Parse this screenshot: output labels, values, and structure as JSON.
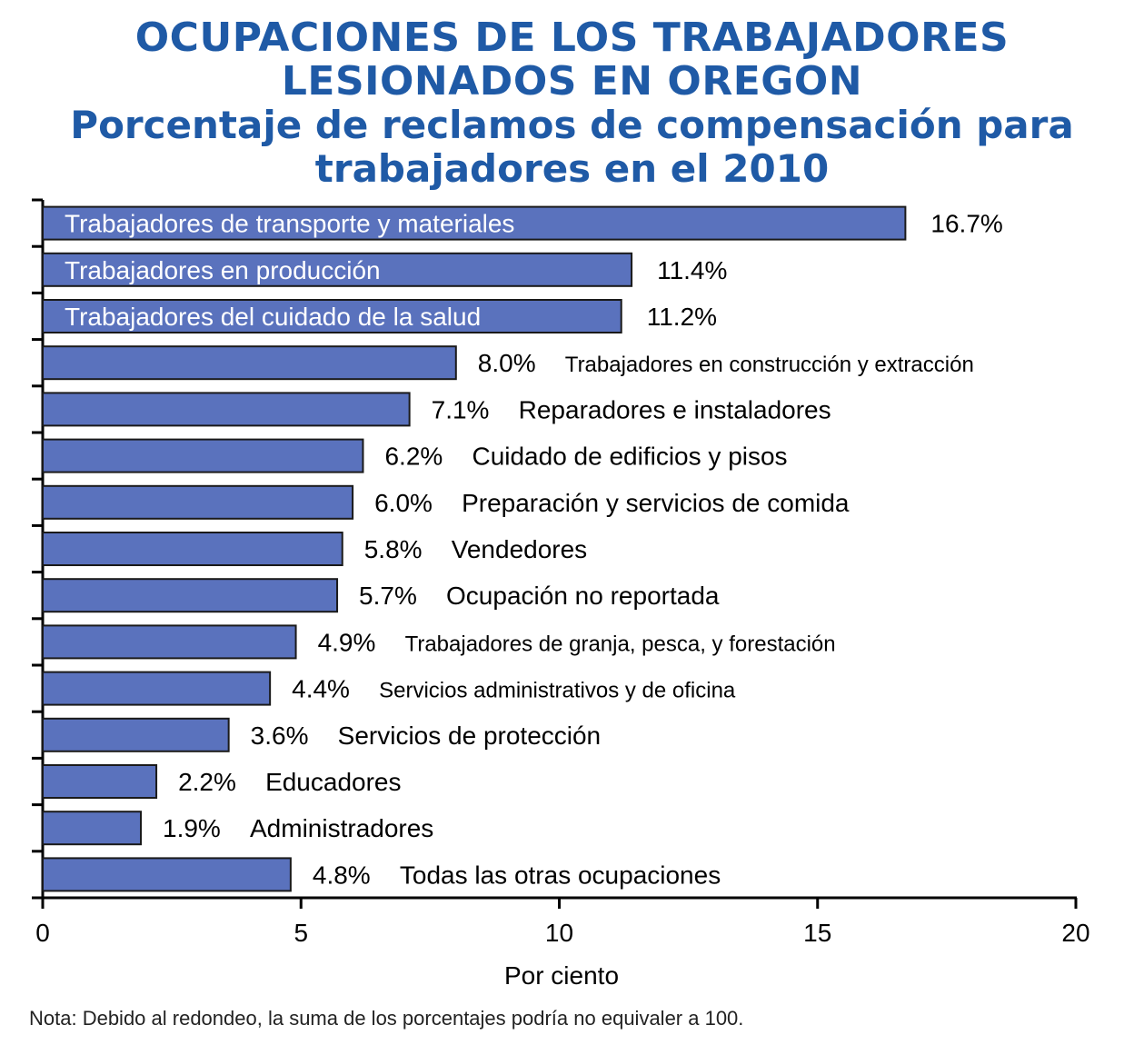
{
  "title_lines": [
    "OCUPACIONES DE LOS TRABAJADORES",
    "LESIONADOS EN OREGON"
  ],
  "subtitle_lines": [
    "Porcentaje de reclamos de compensación para",
    "trabajadores en el 2010"
  ],
  "note": "Nota: Debido al redondeo,  la suma de los porcentajes podría no equivaler a 100.",
  "colors": {
    "title": "#1f5aa6",
    "bar": "#5a72bd",
    "bar_stroke": "#1a1a1a",
    "inside_label": "#ffffff"
  },
  "chart_data": {
    "type": "bar",
    "orientation": "horizontal",
    "xlabel": "Por ciento",
    "xlim": [
      0,
      20
    ],
    "xticks": [
      0,
      5,
      10,
      15,
      20
    ],
    "grid": false,
    "bars": [
      {
        "category": "Trabajadores de transporte y materiales",
        "value": 16.7,
        "value_label": "16.7%",
        "label_inside": true
      },
      {
        "category": "Trabajadores en producción",
        "value": 11.4,
        "value_label": "11.4%",
        "label_inside": true
      },
      {
        "category": "Trabajadores del cuidado de la salud",
        "value": 11.2,
        "value_label": "11.2%",
        "label_inside": true
      },
      {
        "category": "Trabajadores en construcción y extracción",
        "value": 8.0,
        "value_label": "8.0%",
        "label_inside": false
      },
      {
        "category": "Reparadores e instaladores",
        "value": 7.1,
        "value_label": "7.1%",
        "label_inside": false
      },
      {
        "category": "Cuidado de edificios y pisos",
        "value": 6.2,
        "value_label": "6.2%",
        "label_inside": false
      },
      {
        "category": "Preparación y servicios de comida",
        "value": 6.0,
        "value_label": "6.0%",
        "label_inside": false
      },
      {
        "category": "Vendedores",
        "value": 5.8,
        "value_label": "5.8%",
        "label_inside": false
      },
      {
        "category": "Ocupación no reportada",
        "value": 5.7,
        "value_label": "5.7%",
        "label_inside": false
      },
      {
        "category": "Trabajadores de granja, pesca, y forestación",
        "value": 4.9,
        "value_label": "4.9%",
        "label_inside": false
      },
      {
        "category": "Servicios administrativos y de oficina",
        "value": 4.4,
        "value_label": "4.4%",
        "label_inside": false
      },
      {
        "category": "Servicios de protección",
        "value": 3.6,
        "value_label": "3.6%",
        "label_inside": false
      },
      {
        "category": "Educadores",
        "value": 2.2,
        "value_label": "2.2%",
        "label_inside": false
      },
      {
        "category": "Administradores",
        "value": 1.9,
        "value_label": "1.9%",
        "label_inside": false
      },
      {
        "category": "Todas las otras ocupaciones",
        "value": 4.8,
        "value_label": "4.8%",
        "label_inside": false
      }
    ]
  }
}
